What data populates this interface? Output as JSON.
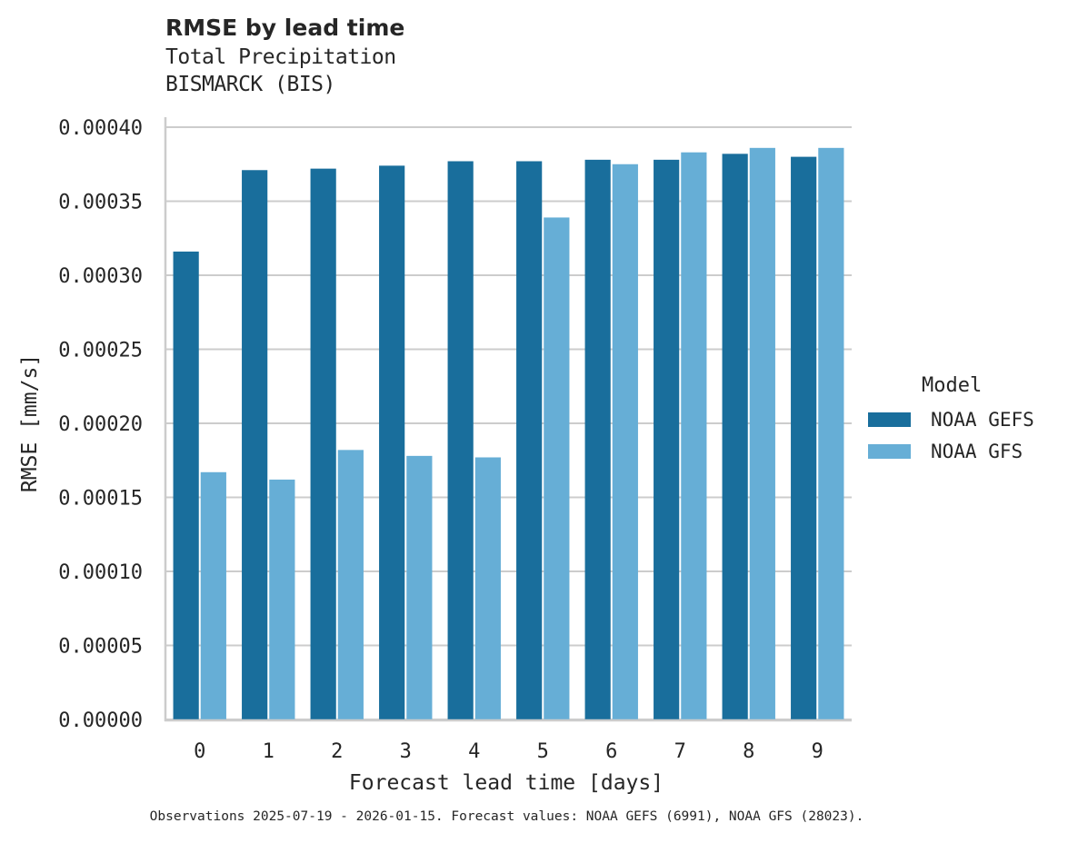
{
  "title": "RMSE by lead time",
  "subtitle_lines": [
    "Total Precipitation",
    "BISMARCK (BIS)"
  ],
  "footer": "Observations 2025-07-19 - 2026-01-15. Forecast values: NOAA GEFS (6991), NOAA GFS (28023).",
  "legend": {
    "title": "Model",
    "items": [
      {
        "label": "NOAA GEFS",
        "color": "#196e9c"
      },
      {
        "label": "NOAA GFS",
        "color": "#66aed6"
      }
    ]
  },
  "chart_data": {
    "type": "bar",
    "title": "RMSE by lead time",
    "subtitle": "Total Precipitation / BISMARCK (BIS)",
    "xlabel": "Forecast lead time [days]",
    "ylabel": "RMSE [mm/s]",
    "categories": [
      "0",
      "1",
      "2",
      "3",
      "4",
      "5",
      "6",
      "7",
      "8",
      "9"
    ],
    "series": [
      {
        "name": "NOAA GEFS",
        "color": "#196e9c",
        "values": [
          0.000316,
          0.000371,
          0.000372,
          0.000374,
          0.000377,
          0.000377,
          0.000378,
          0.000378,
          0.000382,
          0.00038
        ]
      },
      {
        "name": "NOAA GFS",
        "color": "#66aed6",
        "values": [
          0.000167,
          0.000162,
          0.000182,
          0.000178,
          0.000177,
          0.000339,
          0.000375,
          0.000383,
          0.000386,
          0.000386
        ]
      }
    ],
    "ylim": [
      0,
      0.0004
    ],
    "yticks": [
      0.0,
      5e-05,
      0.0001,
      0.00015,
      0.0002,
      0.00025,
      0.0003,
      0.00035,
      0.0004
    ],
    "ytick_labels": [
      "0.00000",
      "0.00005",
      "0.00010",
      "0.00015",
      "0.00020",
      "0.00025",
      "0.00030",
      "0.00035",
      "0.00040"
    ],
    "grid": {
      "y": true,
      "x": false
    },
    "legend_position": "right",
    "legend_title": "Model"
  }
}
